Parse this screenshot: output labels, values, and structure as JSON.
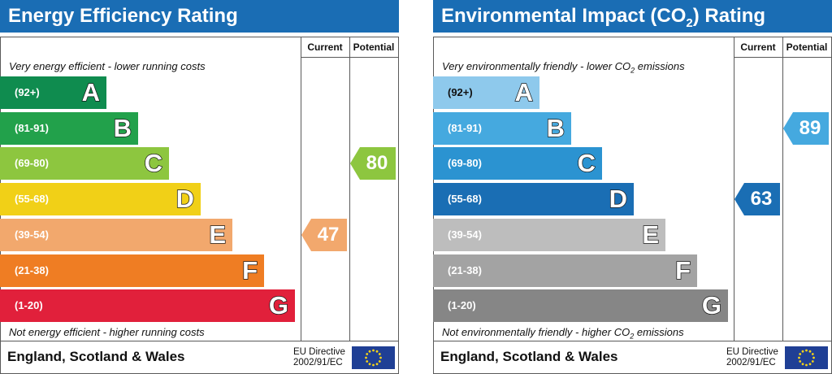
{
  "chart_data": [
    {
      "type": "bar",
      "title": "Energy Efficiency Rating",
      "columns": [
        "Current",
        "Potential"
      ],
      "top_caption": "Very energy efficient - lower running costs",
      "bottom_caption": "Not energy efficient - higher running costs",
      "categories": [
        "A",
        "B",
        "C",
        "D",
        "E",
        "F",
        "G"
      ],
      "ranges": [
        "(92+)",
        "(81-91)",
        "(69-80)",
        "(55-68)",
        "(39-54)",
        "(21-38)",
        "(1-20)"
      ],
      "colors": [
        "#0f8c4f",
        "#22a14b",
        "#8dc63f",
        "#f1d017",
        "#f2a86d",
        "#ef7d23",
        "#e1203b"
      ],
      "current": {
        "value": "47",
        "band": "E",
        "color": "#f2a86d"
      },
      "potential": {
        "value": "80",
        "band": "C",
        "color": "#8dc63f"
      },
      "region": "England, Scotland & Wales",
      "eu_line1": "EU Directive",
      "eu_line2": "2002/91/EC"
    },
    {
      "type": "bar",
      "title_main": "Environmental Impact (CO",
      "title_sub": "2",
      "title_tail": ") Rating",
      "columns": [
        "Current",
        "Potential"
      ],
      "top_caption_main": "Very environmentally friendly - lower CO",
      "top_caption_sub": "2",
      "top_caption_tail": " emissions",
      "bottom_caption_main": "Not environmentally friendly - higher CO",
      "bottom_caption_sub": "2",
      "bottom_caption_tail": " emissions",
      "categories": [
        "A",
        "B",
        "C",
        "D",
        "E",
        "F",
        "G"
      ],
      "ranges": [
        "(92+)",
        "(81-91)",
        "(69-80)",
        "(55-68)",
        "(39-54)",
        "(21-38)",
        "(1-20)"
      ],
      "colors": [
        "#8ec9ec",
        "#45a9df",
        "#2b93d1",
        "#1a6eb4",
        "#bdbdbd",
        "#a3a3a3",
        "#868686"
      ],
      "current": {
        "value": "63",
        "band": "D",
        "color": "#1a6eb4"
      },
      "potential": {
        "value": "89",
        "band": "B",
        "color": "#45a9df"
      },
      "region": "England, Scotland & Wales",
      "eu_line1": "EU Directive",
      "eu_line2": "2002/91/EC"
    }
  ]
}
